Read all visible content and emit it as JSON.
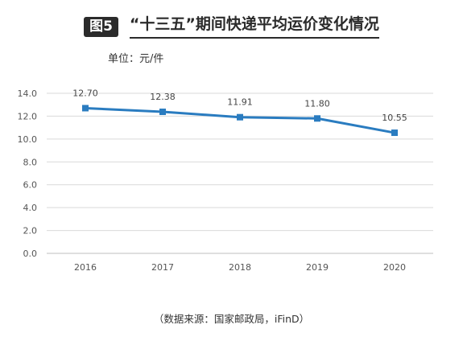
{
  "figure": {
    "badge": "图5",
    "title": "“十三五”期间快递平均运价变化情况",
    "unit": "单位：元/件",
    "source": "（数据来源：国家邮政局，iFinD）"
  },
  "colors": {
    "line": "#2a7cc0",
    "grid": "#d9d9d9",
    "axis": "#bfbfbf"
  },
  "chart_data": {
    "type": "line",
    "title": "“十三五”期间快递平均运价变化情况",
    "xlabel": "",
    "ylabel": "",
    "unit": "单位：元/件",
    "categories": [
      "2016",
      "2017",
      "2018",
      "2019",
      "2020"
    ],
    "y_ticks": [
      "0.0",
      "2.0",
      "4.0",
      "6.0",
      "8.0",
      "10.0",
      "12.0",
      "14.0"
    ],
    "series": [
      {
        "values": [
          12.7,
          12.38,
          11.91,
          11.8,
          10.55
        ],
        "labels": [
          "12.70",
          "12.38",
          "11.91",
          "11.80",
          "10.55"
        ]
      }
    ],
    "ylim": [
      0,
      14
    ],
    "grid": true,
    "legend": "none"
  }
}
